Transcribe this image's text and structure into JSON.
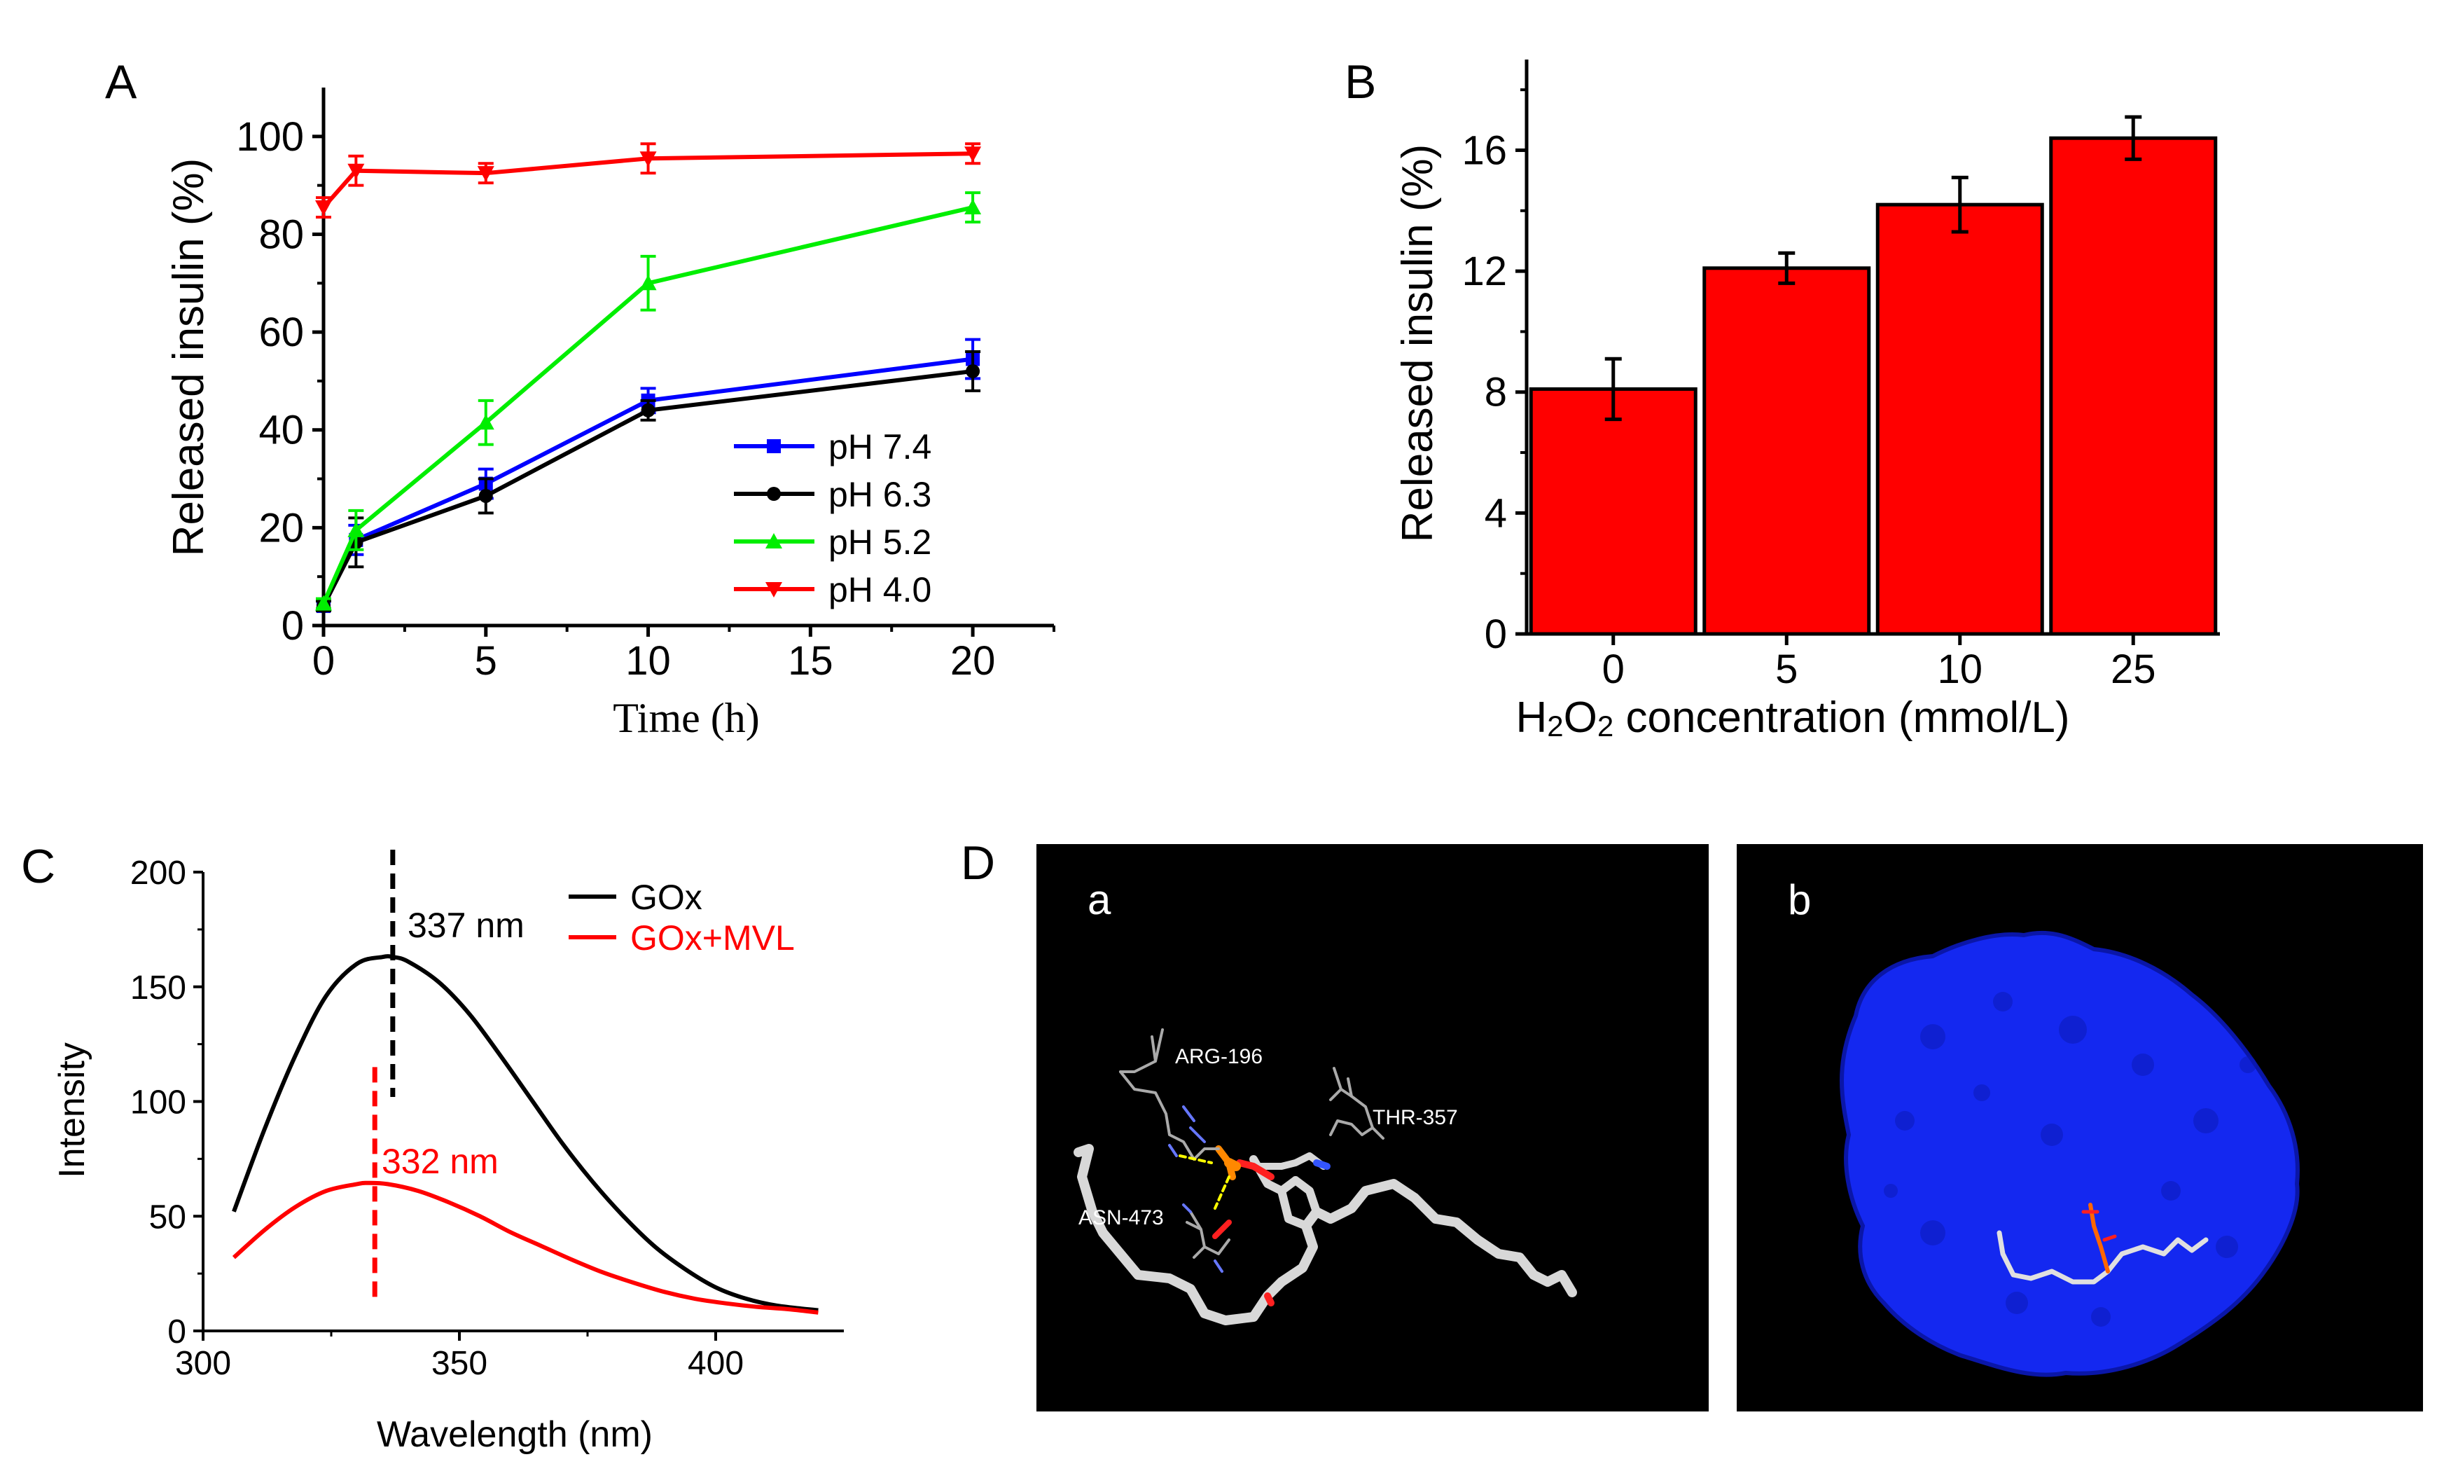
{
  "colors": {
    "red": "#ff0000",
    "blue": "#0000ff",
    "green": "#00ee00",
    "black": "#000000",
    "surface_blue": "#1428f0",
    "panel_bg": "#000000"
  },
  "chart_data": [
    {
      "panel": "A",
      "type": "line",
      "xlabel": "Time (h)",
      "ylabel": "Released insulin (%)",
      "xlim": [
        0,
        22.5
      ],
      "ylim": [
        0,
        110
      ],
      "xticks": [
        0,
        5,
        10,
        15,
        20
      ],
      "yticks": [
        0,
        20,
        40,
        60,
        80,
        100
      ],
      "x": [
        0,
        1,
        5,
        10,
        20
      ],
      "legend_position": "lower-right",
      "series": [
        {
          "name": "pH 7.4",
          "color": "#0000ff",
          "marker": "square",
          "values": [
            4,
            17.5,
            29,
            46,
            54.5
          ],
          "errors": [
            1,
            3,
            3,
            2.5,
            4
          ]
        },
        {
          "name": "pH 6.3",
          "color": "#000000",
          "marker": "circle",
          "values": [
            4,
            17,
            26.5,
            44,
            52
          ],
          "errors": [
            1,
            5,
            3.5,
            2,
            4
          ]
        },
        {
          "name": "pH 5.2",
          "color": "#00ee00",
          "marker": "triangle-up",
          "values": [
            4.5,
            19.5,
            41.5,
            70,
            85.5
          ],
          "errors": [
            1,
            4,
            4.5,
            5.5,
            3
          ]
        },
        {
          "name": "pH 4.0",
          "color": "#ff0000",
          "marker": "triangle-down",
          "values": [
            85.5,
            93,
            92.5,
            95.5,
            96.5
          ],
          "errors": [
            2,
            3,
            2,
            3,
            2
          ]
        }
      ]
    },
    {
      "panel": "B",
      "type": "bar",
      "xlabel": "H2O2 concentration (mmol/L)",
      "ylabel": "Released insulin (%)",
      "ylim": [
        0,
        19
      ],
      "yticks": [
        0,
        4,
        8,
        12,
        16
      ],
      "categories": [
        "0",
        "5",
        "10",
        "25"
      ],
      "values": [
        8.1,
        12.1,
        14.2,
        16.4
      ],
      "errors": [
        1.0,
        0.5,
        0.9,
        0.7
      ],
      "bar_color": "#ff0000"
    },
    {
      "panel": "C",
      "type": "line",
      "xlabel": "Wavelength (nm)",
      "ylabel": "Intensity",
      "xlim": [
        300,
        425
      ],
      "ylim": [
        0,
        200
      ],
      "xticks": [
        300,
        350,
        400
      ],
      "yticks": [
        0,
        50,
        100,
        150,
        200
      ],
      "legend_position": "top-right",
      "series": [
        {
          "name": "GOx",
          "color": "#000000",
          "x": [
            306,
            312,
            318,
            324,
            330,
            335,
            337,
            340,
            346,
            352,
            358,
            364,
            370,
            376,
            382,
            388,
            394,
            400,
            406,
            412,
            420
          ],
          "values": [
            52,
            88,
            120,
            146,
            160,
            163,
            163,
            161,
            152,
            138,
            120,
            101,
            82,
            65,
            50,
            37,
            27,
            19,
            14,
            11,
            9
          ]
        },
        {
          "name": "GOx+MVL",
          "color": "#ff0000",
          "x": [
            306,
            312,
            318,
            324,
            330,
            332,
            336,
            342,
            348,
            354,
            360,
            366,
            372,
            378,
            384,
            390,
            396,
            402,
            408,
            414,
            420
          ],
          "values": [
            32,
            44,
            54,
            61,
            64,
            64.5,
            64,
            61,
            56,
            50,
            43,
            37,
            31,
            25.5,
            21,
            17,
            14,
            12,
            10.5,
            9.5,
            8
          ]
        }
      ],
      "annotations": [
        {
          "text": "337 nm",
          "x": 337,
          "color": "#000000"
        },
        {
          "text": "332 nm",
          "x": 333.5,
          "color": "#ff0000"
        }
      ]
    }
  ],
  "panelA": {
    "letter": "A",
    "xlabel": "Time (h)",
    "ylabel": "Released insulin (%)"
  },
  "panelB": {
    "letter": "B",
    "xlabel": "H",
    "xlabel_sub1": "2",
    "xlabel_mid": "O",
    "xlabel_sub2": "2",
    "xlabel_tail": " concentration (mmol/L)",
    "ylabel": "Released insulin (%)"
  },
  "panelC": {
    "letter": "C",
    "xlabel": "Wavelength (nm)",
    "ylabel": "Intensity",
    "peak1": "337 nm",
    "peak2": "332 nm",
    "legend1": "GOx",
    "legend2": "GOx+MVL"
  },
  "panelD": {
    "letter": "D",
    "sub_a": "a",
    "sub_b": "b",
    "residues": {
      "arg": "ARG-196",
      "thr": "THR-357",
      "asn": "ASN-473"
    }
  }
}
